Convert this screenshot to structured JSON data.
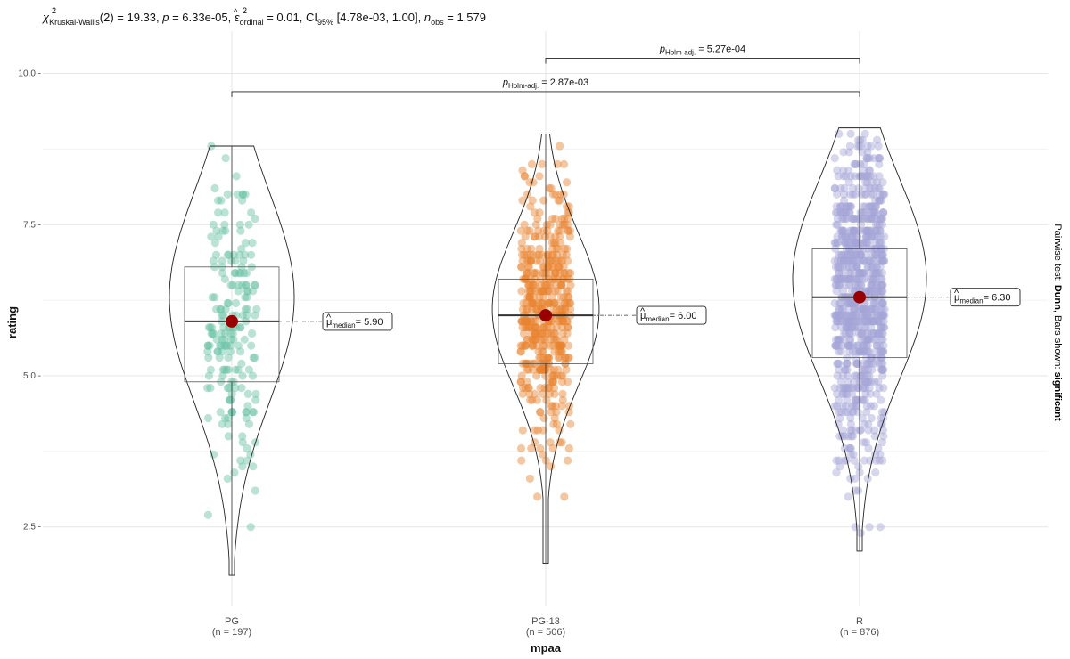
{
  "chart_data": {
    "type": "violin-box-scatter",
    "title_parts": {
      "chi_sup": "2",
      "chi_sub": "Kruskal-Wallis",
      "df_part": "(2) = 19.33, ",
      "p_part": "p",
      "p_value": " = 6.33e-05, ",
      "eps_sup": "2",
      "eps_sub": "ordinal",
      "eps_value": " = 0.01, CI",
      "ci_sub": "95%",
      "ci_value": " [4.78e-03, 1.00], ",
      "n_label": "n",
      "n_sub": "obs",
      "n_value": " = 1,579"
    },
    "xlabel": "mpaa",
    "ylabel": "rating",
    "ylim": [
      1.2,
      10.7
    ],
    "yticks": [
      2.5,
      5.0,
      7.5,
      10.0
    ],
    "ytick_labels": [
      "2.5 -",
      "5.0 -",
      "7.5 -",
      "10.0 -"
    ],
    "groups": [
      {
        "name": "PG",
        "n_label": "(n = 197)",
        "n": 197,
        "color": "#66c2a5",
        "median": 5.9,
        "median_label": "= 5.90",
        "q1": 4.9,
        "q3": 6.8,
        "min": 1.7,
        "max": 8.8,
        "violin_peak": 6.3,
        "violin_halfwidth": 70
      },
      {
        "name": "PG-13",
        "n_label": "(n = 506)",
        "n": 506,
        "color": "#e8822f",
        "median": 6.0,
        "median_label": "= 6.00",
        "q1": 5.2,
        "q3": 6.6,
        "min": 1.9,
        "max": 9.0,
        "violin_peak": 6.1,
        "violin_halfwidth": 60
      },
      {
        "name": "R",
        "n_label": "(n = 876)",
        "n": 876,
        "color": "#a3a3d6",
        "median": 6.3,
        "median_label": "= 6.30",
        "q1": 5.3,
        "q3": 7.1,
        "min": 2.1,
        "max": 9.1,
        "violin_peak": 6.6,
        "violin_halfwidth": 75
      }
    ],
    "median_symbol": "μ",
    "median_sub": "median",
    "comparisons": [
      {
        "from": "PG-13",
        "to": "R",
        "y": 10.25,
        "p_label": "p",
        "p_sub": "Holm-adj.",
        "p_value": " = 5.27e-04"
      },
      {
        "from": "PG",
        "to": "R",
        "y": 9.7,
        "p_label": "p",
        "p_sub": "Holm-adj.",
        "p_value": " = 2.87e-03"
      }
    ],
    "side_caption": {
      "prefix": "Pairwise test: ",
      "test": "Dunn",
      "middle": ", Bars shown: ",
      "shown": "significant"
    }
  }
}
